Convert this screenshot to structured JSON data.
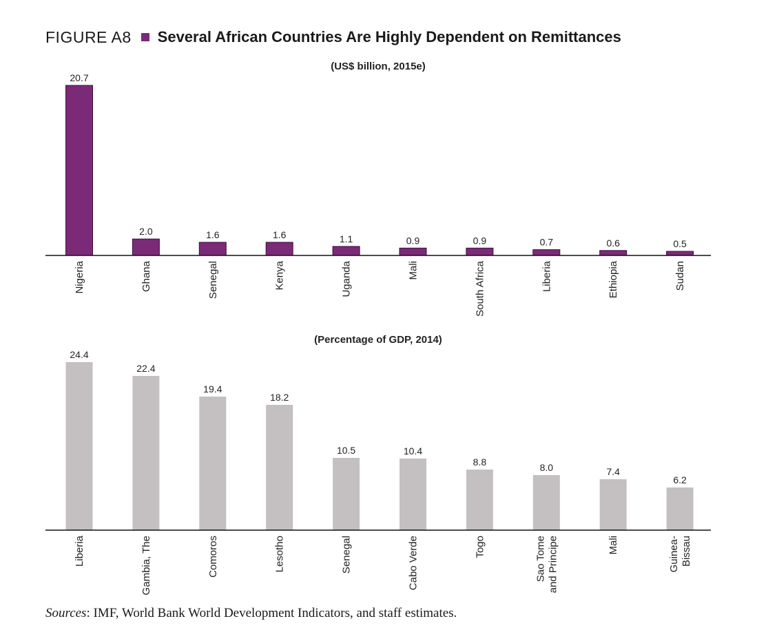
{
  "figure": {
    "label": "FIGURE A8",
    "title": "Several African Countries Are Highly Dependent on Remittances",
    "accent_color": "#7b2a78"
  },
  "sources": {
    "label": "Sources",
    "text": ": IMF, World Bank World Development Indicators, and staff estimates."
  },
  "chart_data": [
    {
      "type": "bar",
      "title": "(US$ billion, 2015e)",
      "xlabel": "",
      "ylabel": "",
      "categories": [
        "Nigeria",
        "Ghana",
        "Senegal",
        "Kenya",
        "Uganda",
        "Mali",
        "South Africa",
        "Liberia",
        "Ethiopia",
        "Sudan"
      ],
      "values": [
        20.7,
        2.0,
        1.6,
        1.6,
        1.1,
        0.9,
        0.9,
        0.7,
        0.6,
        0.5
      ],
      "value_labels": [
        "20.7",
        "2.0",
        "1.6",
        "1.6",
        "1.1",
        "0.9",
        "0.9",
        "0.7",
        "0.6",
        "0.5"
      ],
      "ylim": [
        0,
        20.7
      ],
      "grid": false,
      "bar_color": "#7b2a78",
      "bar_stroke_color": "#3e1040"
    },
    {
      "type": "bar",
      "title": "(Percentage of GDP, 2014)",
      "xlabel": "",
      "ylabel": "",
      "categories": [
        "Liberia",
        "Gambia, The",
        "Comoros",
        "Lesotho",
        "Senegal",
        "Cabo Verde",
        "Togo",
        "Sao Tome\nand Principe",
        "Mali",
        "Guinea-\nBissau"
      ],
      "values": [
        24.4,
        22.4,
        19.4,
        18.2,
        10.5,
        10.4,
        8.8,
        8.0,
        7.4,
        6.2
      ],
      "value_labels": [
        "24.4",
        "22.4",
        "19.4",
        "18.2",
        "10.5",
        "10.4",
        "8.8",
        "8.0",
        "7.4",
        "6.2"
      ],
      "ylim": [
        0,
        24.4
      ],
      "grid": false,
      "bar_color": "#c4c0c1",
      "bar_stroke_color": "none"
    }
  ]
}
